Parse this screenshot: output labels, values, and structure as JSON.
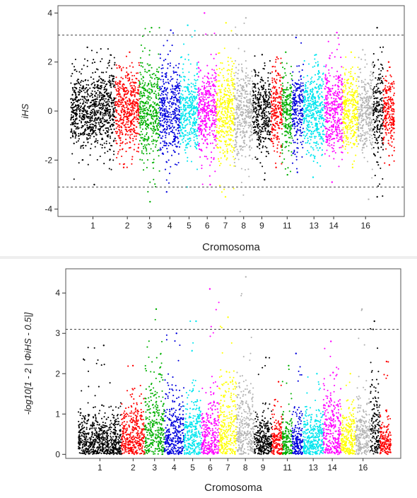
{
  "chart_data": [
    {
      "type": "scatter",
      "subtype": "manhattan",
      "xlabel": "Cromosoma",
      "ylabel": "iHS",
      "ylim": [
        -4.3,
        4.3
      ],
      "yticks": [
        -4,
        -2,
        0,
        2,
        4
      ],
      "threshold_lines": [
        3.1,
        -3.1
      ],
      "x_tick_labels": [
        {
          "chromosome": 1,
          "label": "1"
        },
        {
          "chromosome": 2,
          "label": "2"
        },
        {
          "chromosome": 3,
          "label": "3"
        },
        {
          "chromosome": 4,
          "label": "4"
        },
        {
          "chromosome": 5,
          "label": "5"
        },
        {
          "chromosome": 6,
          "label": "6"
        },
        {
          "chromosome": 7,
          "label": "7"
        },
        {
          "chromosome": 8,
          "label": "8"
        },
        {
          "chromosome": 9,
          "label": "9"
        },
        {
          "chromosome": 11,
          "label": "11"
        },
        {
          "chromosome": 13,
          "label": "13"
        },
        {
          "chromosome": 14,
          "label": "14"
        },
        {
          "chromosome": 16,
          "label": "16"
        }
      ],
      "chromosomes": [
        {
          "chr": 1,
          "color": "#000000",
          "core_abs": 1.5,
          "max": 2.6,
          "min": -3.0
        },
        {
          "chr": 2,
          "color": "#ff0000",
          "core_abs": 1.5,
          "max": 2.4,
          "min": -2.3
        },
        {
          "chr": 3,
          "color": "#00b000",
          "core_abs": 1.8,
          "max": 3.4,
          "min": -3.7
        },
        {
          "chr": 4,
          "color": "#0000dd",
          "core_abs": 1.7,
          "max": 3.3,
          "min": -3.3
        },
        {
          "chr": 5,
          "color": "#00e5ee",
          "core_abs": 1.6,
          "max": 3.5,
          "min": -3.1
        },
        {
          "chr": 6,
          "color": "#ff00ff",
          "core_abs": 1.6,
          "max": 4.0,
          "min": -3.0
        },
        {
          "chr": 7,
          "color": "#ffff00",
          "core_abs": 1.8,
          "max": 3.6,
          "min": -3.5
        },
        {
          "chr": 8,
          "color": "#b3b3b3",
          "core_abs": 1.8,
          "max": 3.8,
          "min": -4.1
        },
        {
          "chr": 9,
          "color": "#000000",
          "core_abs": 1.5,
          "max": 2.3,
          "min": -2.8
        },
        {
          "chr": 10,
          "color": "#ff0000",
          "core_abs": 1.4,
          "max": 2.2,
          "min": -2.3
        },
        {
          "chr": 11,
          "color": "#00b000",
          "core_abs": 1.4,
          "max": 2.4,
          "min": -2.6
        },
        {
          "chr": 12,
          "color": "#0000dd",
          "core_abs": 1.5,
          "max": 3.0,
          "min": -2.5
        },
        {
          "chr": 13,
          "color": "#00e5ee",
          "core_abs": 1.5,
          "max": 2.3,
          "min": -2.7
        },
        {
          "chr": 14,
          "color": "#ff00ff",
          "core_abs": 1.7,
          "max": 3.2,
          "min": -2.9
        },
        {
          "chr": 15,
          "color": "#ffff00",
          "core_abs": 1.4,
          "max": 2.4,
          "min": -2.3
        },
        {
          "chr": 16,
          "color": "#b3b3b3",
          "core_abs": 1.6,
          "max": 2.5,
          "min": -3.6
        },
        {
          "chr": 17,
          "color": "#000000",
          "core_abs": 1.8,
          "max": 3.4,
          "min": -3.5
        },
        {
          "chr": 18,
          "color": "#ff0000",
          "core_abs": 1.3,
          "max": 2.0,
          "min": -2.2
        }
      ]
    },
    {
      "type": "scatter",
      "subtype": "manhattan",
      "xlabel": "Cromosoma",
      "ylabel": "-log10[1 - 2 | ΦiHS - 0.5|]",
      "ylim": [
        -0.1,
        4.6
      ],
      "yticks": [
        0,
        1,
        2,
        3,
        4
      ],
      "threshold_lines": [
        3.1
      ],
      "x_tick_labels": [
        {
          "chromosome": 1,
          "label": "1"
        },
        {
          "chromosome": 2,
          "label": "2"
        },
        {
          "chromosome": 3,
          "label": "3"
        },
        {
          "chromosome": 4,
          "label": "4"
        },
        {
          "chromosome": 5,
          "label": "5"
        },
        {
          "chromosome": 6,
          "label": "6"
        },
        {
          "chromosome": 7,
          "label": "7"
        },
        {
          "chromosome": 8,
          "label": "8"
        },
        {
          "chromosome": 9,
          "label": "9"
        },
        {
          "chromosome": 11,
          "label": "11"
        },
        {
          "chromosome": 13,
          "label": "13"
        },
        {
          "chromosome": 14,
          "label": "14"
        },
        {
          "chromosome": 16,
          "label": "16"
        }
      ],
      "chromosomes": [
        {
          "chr": 1,
          "color": "#000000",
          "core": 0.9,
          "max": 2.7
        },
        {
          "chr": 2,
          "color": "#ff0000",
          "core": 1.0,
          "max": 2.2
        },
        {
          "chr": 3,
          "color": "#00b000",
          "core": 1.6,
          "max": 3.6
        },
        {
          "chr": 4,
          "color": "#0000dd",
          "core": 1.3,
          "max": 3.0
        },
        {
          "chr": 5,
          "color": "#00e5ee",
          "core": 1.3,
          "max": 3.3
        },
        {
          "chr": 6,
          "color": "#ff00ff",
          "core": 1.2,
          "max": 4.1
        },
        {
          "chr": 7,
          "color": "#ffff00",
          "core": 1.6,
          "max": 3.4
        },
        {
          "chr": 8,
          "color": "#b3b3b3",
          "core": 1.6,
          "max": 4.4
        },
        {
          "chr": 9,
          "color": "#000000",
          "core": 0.9,
          "max": 2.4
        },
        {
          "chr": 10,
          "color": "#ff0000",
          "core": 0.9,
          "max": 1.8
        },
        {
          "chr": 11,
          "color": "#00b000",
          "core": 0.9,
          "max": 2.2
        },
        {
          "chr": 12,
          "color": "#0000dd",
          "core": 1.0,
          "max": 2.5
        },
        {
          "chr": 13,
          "color": "#00e5ee",
          "core": 0.9,
          "max": 2.0
        },
        {
          "chr": 14,
          "color": "#ff00ff",
          "core": 1.5,
          "max": 2.8
        },
        {
          "chr": 15,
          "color": "#ffff00",
          "core": 0.9,
          "max": 2.0
        },
        {
          "chr": 16,
          "color": "#b3b3b3",
          "core": 1.1,
          "max": 3.6
        },
        {
          "chr": 17,
          "color": "#000000",
          "core": 1.6,
          "max": 3.3
        },
        {
          "chr": 18,
          "color": "#ff0000",
          "core": 0.8,
          "max": 2.3
        }
      ]
    }
  ]
}
